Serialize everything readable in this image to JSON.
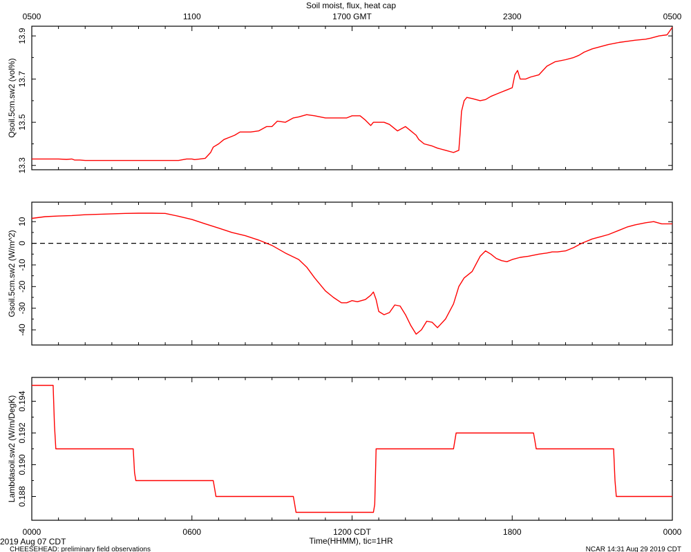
{
  "chart_data": {
    "type": "line",
    "title": "Soil moist, flux, heat cap",
    "top_axis": {
      "ticks": [
        {
          "hour": 0,
          "label": "0500"
        },
        {
          "hour": 6,
          "label": "1100"
        },
        {
          "hour": 12,
          "label": "1700 GMT"
        },
        {
          "hour": 18,
          "label": "2300"
        },
        {
          "hour": 24,
          "label": "0500"
        }
      ]
    },
    "bottom_axis": {
      "label": "Time(HHMM), tic=1HR",
      "ticks": [
        {
          "hour": 0,
          "label": "0000"
        },
        {
          "hour": 6,
          "label": "0600"
        },
        {
          "hour": 12,
          "label": "1200 CDT"
        },
        {
          "hour": 18,
          "label": "1800"
        },
        {
          "hour": 24,
          "label": "0000"
        }
      ]
    },
    "x_range": [
      0,
      24
    ],
    "color": "#ff0000",
    "footer": {
      "date": "2019 Aug 07 CDT",
      "project": "CHEESEHEAD: preliminary field observations",
      "stamp": "NCAR 14:31 Aug 29 2019 CDT"
    },
    "panels": [
      {
        "name": "soil-moisture",
        "ylabel": "Qsoil.5cm.sw2 (vol%)",
        "ylim": [
          13.28,
          13.945
        ],
        "yticks": [
          {
            "v": 13.3,
            "label": "13.3"
          },
          {
            "v": 13.5,
            "label": "13.5"
          },
          {
            "v": 13.7,
            "label": "13.7"
          },
          {
            "v": 13.9,
            "label": "13.9"
          }
        ],
        "series": [
          {
            "x": [
              0,
              0.5,
              1,
              1.3,
              1.5,
              1.6,
              1.8,
              2,
              2.3,
              2.5,
              2.7,
              3,
              4,
              5,
              5.5,
              5.8,
              6,
              6.1,
              6.3,
              6.5,
              6.7,
              6.8,
              7,
              7.2,
              7.4,
              7.6,
              7.8,
              8,
              8.2,
              8.5,
              8.8,
              9,
              9.2,
              9.5,
              9.8,
              10,
              10.3,
              10.6,
              11,
              11.3,
              11.6,
              11.8,
              12,
              12.3,
              12.5,
              12.7,
              12.8,
              12.9,
              13,
              13.2,
              13.4,
              13.7,
              14,
              14.2,
              14.4,
              14.5,
              14.7,
              15,
              15.2,
              15.5,
              15.8,
              16,
              16.05,
              16.1,
              16.2,
              16.3,
              16.5,
              16.8,
              17,
              17.2,
              17.4,
              17.6,
              17.8,
              18,
              18.1,
              18.2,
              18.3,
              18.5,
              18.7,
              19,
              19.3,
              19.6,
              20,
              20.3,
              20.5,
              20.7,
              21,
              21.3,
              21.6,
              22,
              22.3,
              22.6,
              23,
              23.2,
              23.5,
              23.8,
              24
            ],
            "y": [
              13.33,
              13.33,
              13.33,
              13.328,
              13.33,
              13.325,
              13.325,
              13.323,
              13.323,
              13.323,
              13.323,
              13.323,
              13.323,
              13.323,
              13.323,
              13.33,
              13.33,
              13.327,
              13.33,
              13.333,
              13.36,
              13.385,
              13.4,
              13.42,
              13.43,
              13.44,
              13.455,
              13.455,
              13.455,
              13.46,
              13.48,
              13.48,
              13.505,
              13.5,
              13.52,
              13.525,
              13.535,
              13.53,
              13.52,
              13.52,
              13.52,
              13.52,
              13.53,
              13.53,
              13.51,
              13.485,
              13.5,
              13.5,
              13.5,
              13.5,
              13.49,
              13.46,
              13.48,
              13.46,
              13.44,
              13.42,
              13.4,
              13.39,
              13.38,
              13.37,
              13.36,
              13.37,
              13.45,
              13.55,
              13.6,
              13.615,
              13.61,
              13.6,
              13.605,
              13.62,
              13.63,
              13.64,
              13.65,
              13.66,
              13.72,
              13.74,
              13.7,
              13.7,
              13.71,
              13.72,
              13.76,
              13.78,
              13.79,
              13.8,
              13.81,
              13.825,
              13.84,
              13.85,
              13.86,
              13.87,
              13.875,
              13.88,
              13.885,
              13.89,
              13.9,
              13.905,
              13.94
            ]
          }
        ]
      },
      {
        "name": "heat-flux",
        "ylabel": "Gsoil.5cm.sw2 (W/m^2)",
        "ylim": [
          -47,
          19
        ],
        "yticks": [
          {
            "v": 10,
            "label": "10"
          },
          {
            "v": 0,
            "label": "0"
          },
          {
            "v": -10,
            "label": "-10"
          },
          {
            "v": -20,
            "label": "-20"
          },
          {
            "v": -30,
            "label": "-30"
          },
          {
            "v": -40,
            "label": "-40"
          }
        ],
        "zero_line": 0,
        "series": [
          {
            "x": [
              0,
              0.5,
              1,
              1.5,
              2,
              2.5,
              3,
              3.5,
              4,
              4.5,
              5,
              5.5,
              6,
              6.5,
              7,
              7.5,
              8,
              8.5,
              9,
              9.5,
              10,
              10.3,
              10.6,
              11,
              11.3,
              11.6,
              11.8,
              12,
              12.2,
              12.5,
              12.7,
              12.8,
              12.9,
              13,
              13.2,
              13.4,
              13.6,
              13.8,
              14,
              14.2,
              14.4,
              14.6,
              14.8,
              15,
              15.2,
              15.5,
              15.8,
              16,
              16.2,
              16.5,
              16.8,
              17,
              17.2,
              17.4,
              17.6,
              17.8,
              18,
              18.3,
              18.6,
              19,
              19.3,
              19.5,
              19.7,
              20,
              20.3,
              20.6,
              21,
              21.3,
              21.6,
              22,
              22.3,
              22.6,
              23,
              23.3,
              23.6,
              24
            ],
            "y": [
              11.5,
              12.3,
              12.6,
              12.8,
              13.2,
              13.4,
              13.6,
              13.8,
              13.9,
              13.9,
              13.8,
              12.5,
              11,
              9,
              7,
              5,
              3.5,
              1.5,
              -1,
              -4.5,
              -7.5,
              -11,
              -16,
              -22,
              -25,
              -27.5,
              -27.5,
              -26.5,
              -27,
              -26,
              -24,
              -22.5,
              -26,
              -31.5,
              -33,
              -32,
              -28.5,
              -29,
              -33,
              -38,
              -42,
              -40,
              -36,
              -36.5,
              -39,
              -35,
              -28,
              -20,
              -16,
              -13,
              -6,
              -3.5,
              -5,
              -7,
              -8,
              -8.5,
              -7.5,
              -6.5,
              -6,
              -5,
              -4.5,
              -4,
              -4,
              -3.5,
              -2,
              0,
              2,
              3,
              4,
              6,
              7.5,
              8.5,
              9.5,
              10,
              9,
              9
            ]
          }
        ]
      },
      {
        "name": "thermal-conductivity",
        "ylabel": "Lambdasoil.sw2 (W/m/DegK)",
        "ylim": [
          0.1865,
          0.1955
        ],
        "yticks": [
          {
            "v": 0.188,
            "label": "0.188"
          },
          {
            "v": 0.19,
            "label": "0.190"
          },
          {
            "v": 0.192,
            "label": "0.192"
          },
          {
            "v": 0.194,
            "label": "0.194"
          }
        ],
        "series": [
          {
            "x": [
              0,
              0.8,
              0.85,
              0.9,
              1,
              3.8,
              3.85,
              3.9,
              4,
              6.8,
              6.85,
              6.9,
              7,
              9.8,
              9.85,
              9.9,
              10,
              12.8,
              12.85,
              12.9,
              13,
              15.8,
              15.85,
              15.9,
              16,
              18.8,
              18.85,
              18.9,
              19,
              21.8,
              21.85,
              21.9,
              22,
              24
            ],
            "y": [
              0.195,
              0.195,
              0.1925,
              0.191,
              0.191,
              0.191,
              0.1895,
              0.189,
              0.189,
              0.189,
              0.1885,
              0.188,
              0.188,
              0.188,
              0.1875,
              0.187,
              0.187,
              0.187,
              0.1875,
              0.191,
              0.191,
              0.191,
              0.1915,
              0.192,
              0.192,
              0.192,
              0.1915,
              0.191,
              0.191,
              0.191,
              0.189,
              0.188,
              0.188,
              0.188
            ]
          }
        ]
      }
    ]
  }
}
